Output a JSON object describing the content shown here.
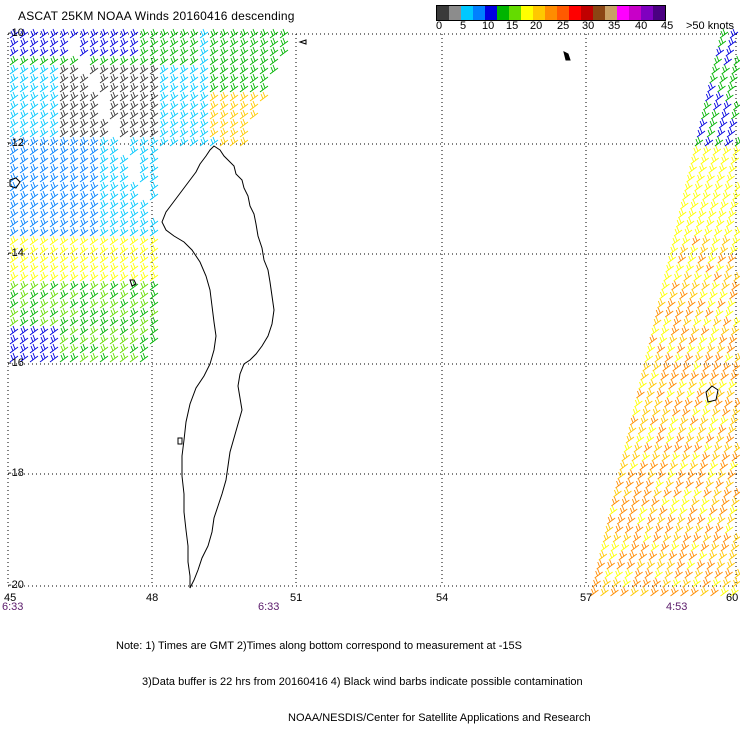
{
  "title": "ASCAT 25KM NOAA Winds 20160416 descending",
  "legend": {
    "labels": [
      "0",
      "5",
      "10",
      "15",
      "20",
      "25",
      "30",
      "35",
      "40",
      "45",
      ">50 knots"
    ],
    "colors": [
      "#3a3a3a",
      "#8c8c8c",
      "#00c8ff",
      "#0080ff",
      "#0000e0",
      "#00b400",
      "#64dc00",
      "#ffff00",
      "#ffc800",
      "#ff8c00",
      "#ff5a00",
      "#ff0000",
      "#c00000",
      "#8b4513",
      "#c8a064",
      "#ff00ff",
      "#c800c8",
      "#8000c0",
      "#4b0082"
    ]
  },
  "axes": {
    "lat_labels": [
      "-10",
      "-12",
      "-14",
      "-16",
      "-18",
      "-20"
    ],
    "lon_labels": [
      "45",
      "48",
      "51",
      "54",
      "57",
      "60"
    ],
    "time_labels": [
      "6:33",
      "6:33",
      "4:53"
    ]
  },
  "notes": [
    "Note: 1) Times are GMT 2)Times along bottom correspond to measurement at -15S",
    "3)Data buffer is 22 hrs from 20160416 4) Black wind barbs indicate possible contamination",
    "NOAA/NESDIS/Center for Satellite Applications and Research"
  ]
}
